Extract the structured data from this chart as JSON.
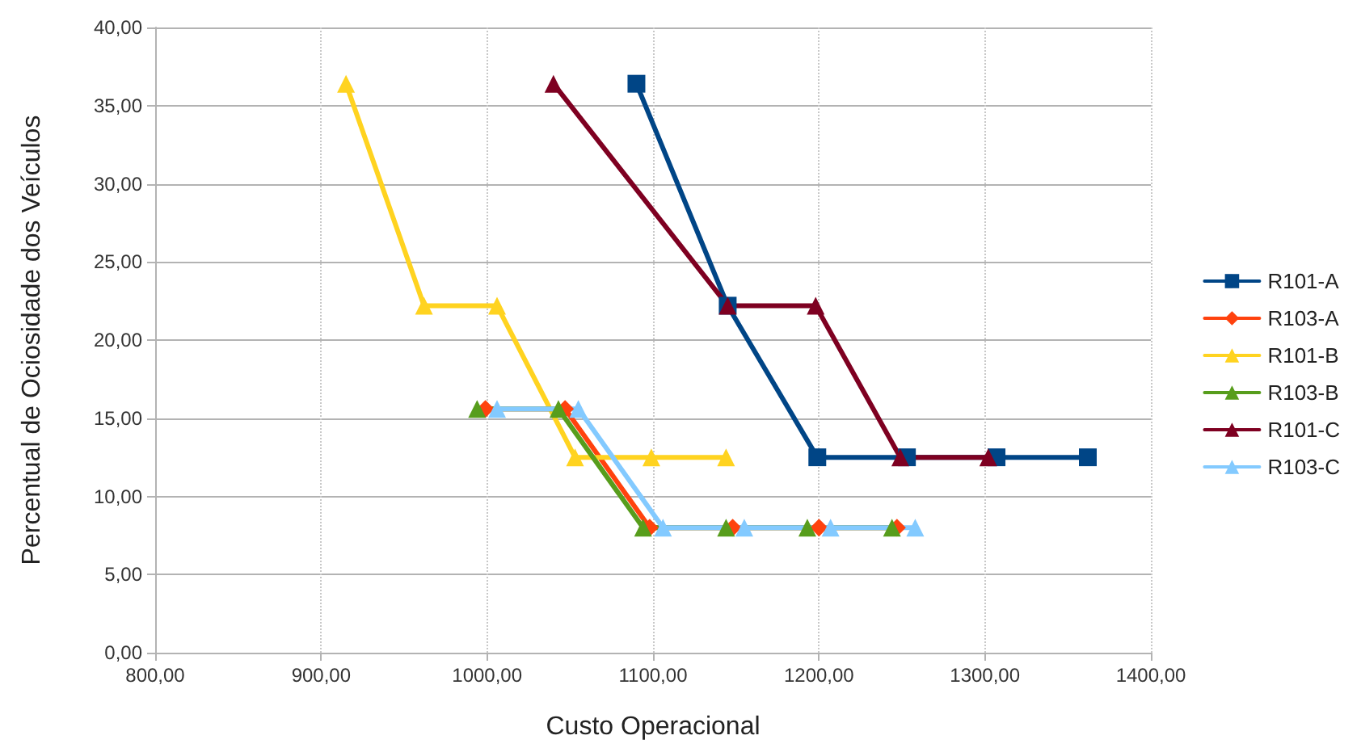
{
  "chart_data": {
    "type": "line",
    "xlabel": "Custo Operacional",
    "ylabel": "Percentual de Ociosidade dos Veículos",
    "xlim": [
      800,
      1400
    ],
    "xticks": [
      {
        "value": 800,
        "label": "800,00"
      },
      {
        "value": 900,
        "label": "900,00"
      },
      {
        "value": 1000,
        "label": "1000,00"
      },
      {
        "value": 1100,
        "label": "1100,00"
      },
      {
        "value": 1200,
        "label": "1200,00"
      },
      {
        "value": 1300,
        "label": "1300,00"
      },
      {
        "value": 1400,
        "label": "1400,00"
      }
    ],
    "ylim": [
      0,
      40
    ],
    "yticks": [
      {
        "value": 0,
        "label": "0,00"
      },
      {
        "value": 5,
        "label": "5,00"
      },
      {
        "value": 10,
        "label": "10,00"
      },
      {
        "value": 15,
        "label": "15,00"
      },
      {
        "value": 20,
        "label": "20,00"
      },
      {
        "value": 25,
        "label": "25,00"
      },
      {
        "value": 30,
        "label": "30,00"
      },
      {
        "value": 35,
        "label": "35,00"
      },
      {
        "value": 40,
        "label": "40,00"
      }
    ],
    "grid": true,
    "legend": "right",
    "line_style": "solid",
    "series": [
      {
        "name": "R101-A",
        "color": "#004586",
        "marker": "square",
        "x": [
          1090,
          1145,
          1199,
          1253,
          1307,
          1362
        ],
        "values": [
          36.4,
          22.2,
          12.5,
          12.5,
          12.5,
          12.5
        ]
      },
      {
        "name": "R103-A",
        "color": "#ff420e",
        "marker": "diamond",
        "x": [
          999,
          1047,
          1098,
          1148,
          1200,
          1247
        ],
        "values": [
          15.6,
          15.6,
          8.0,
          8.0,
          8.0,
          8.0
        ]
      },
      {
        "name": "R101-B",
        "color": "#ffd320",
        "marker": "triangle",
        "x": [
          915,
          962,
          1006,
          1053,
          1099,
          1144
        ],
        "values": [
          36.4,
          22.2,
          22.2,
          12.5,
          12.5,
          12.5
        ]
      },
      {
        "name": "R103-B",
        "color": "#579d1c",
        "marker": "triangle",
        "x": [
          994,
          1043,
          1094,
          1144,
          1193,
          1244
        ],
        "values": [
          15.6,
          15.6,
          8.0,
          8.0,
          8.0,
          8.0
        ]
      },
      {
        "name": "R101-C",
        "color": "#7e0021",
        "marker": "triangle",
        "x": [
          1040,
          1145,
          1198,
          1249,
          1302
        ],
        "values": [
          36.4,
          22.2,
          22.2,
          12.5,
          12.5
        ]
      },
      {
        "name": "R103-C",
        "color": "#83caff",
        "marker": "triangle",
        "x": [
          1006,
          1055,
          1106,
          1155,
          1207,
          1258
        ],
        "values": [
          15.6,
          15.6,
          8.0,
          8.0,
          8.0,
          8.0
        ]
      }
    ]
  }
}
